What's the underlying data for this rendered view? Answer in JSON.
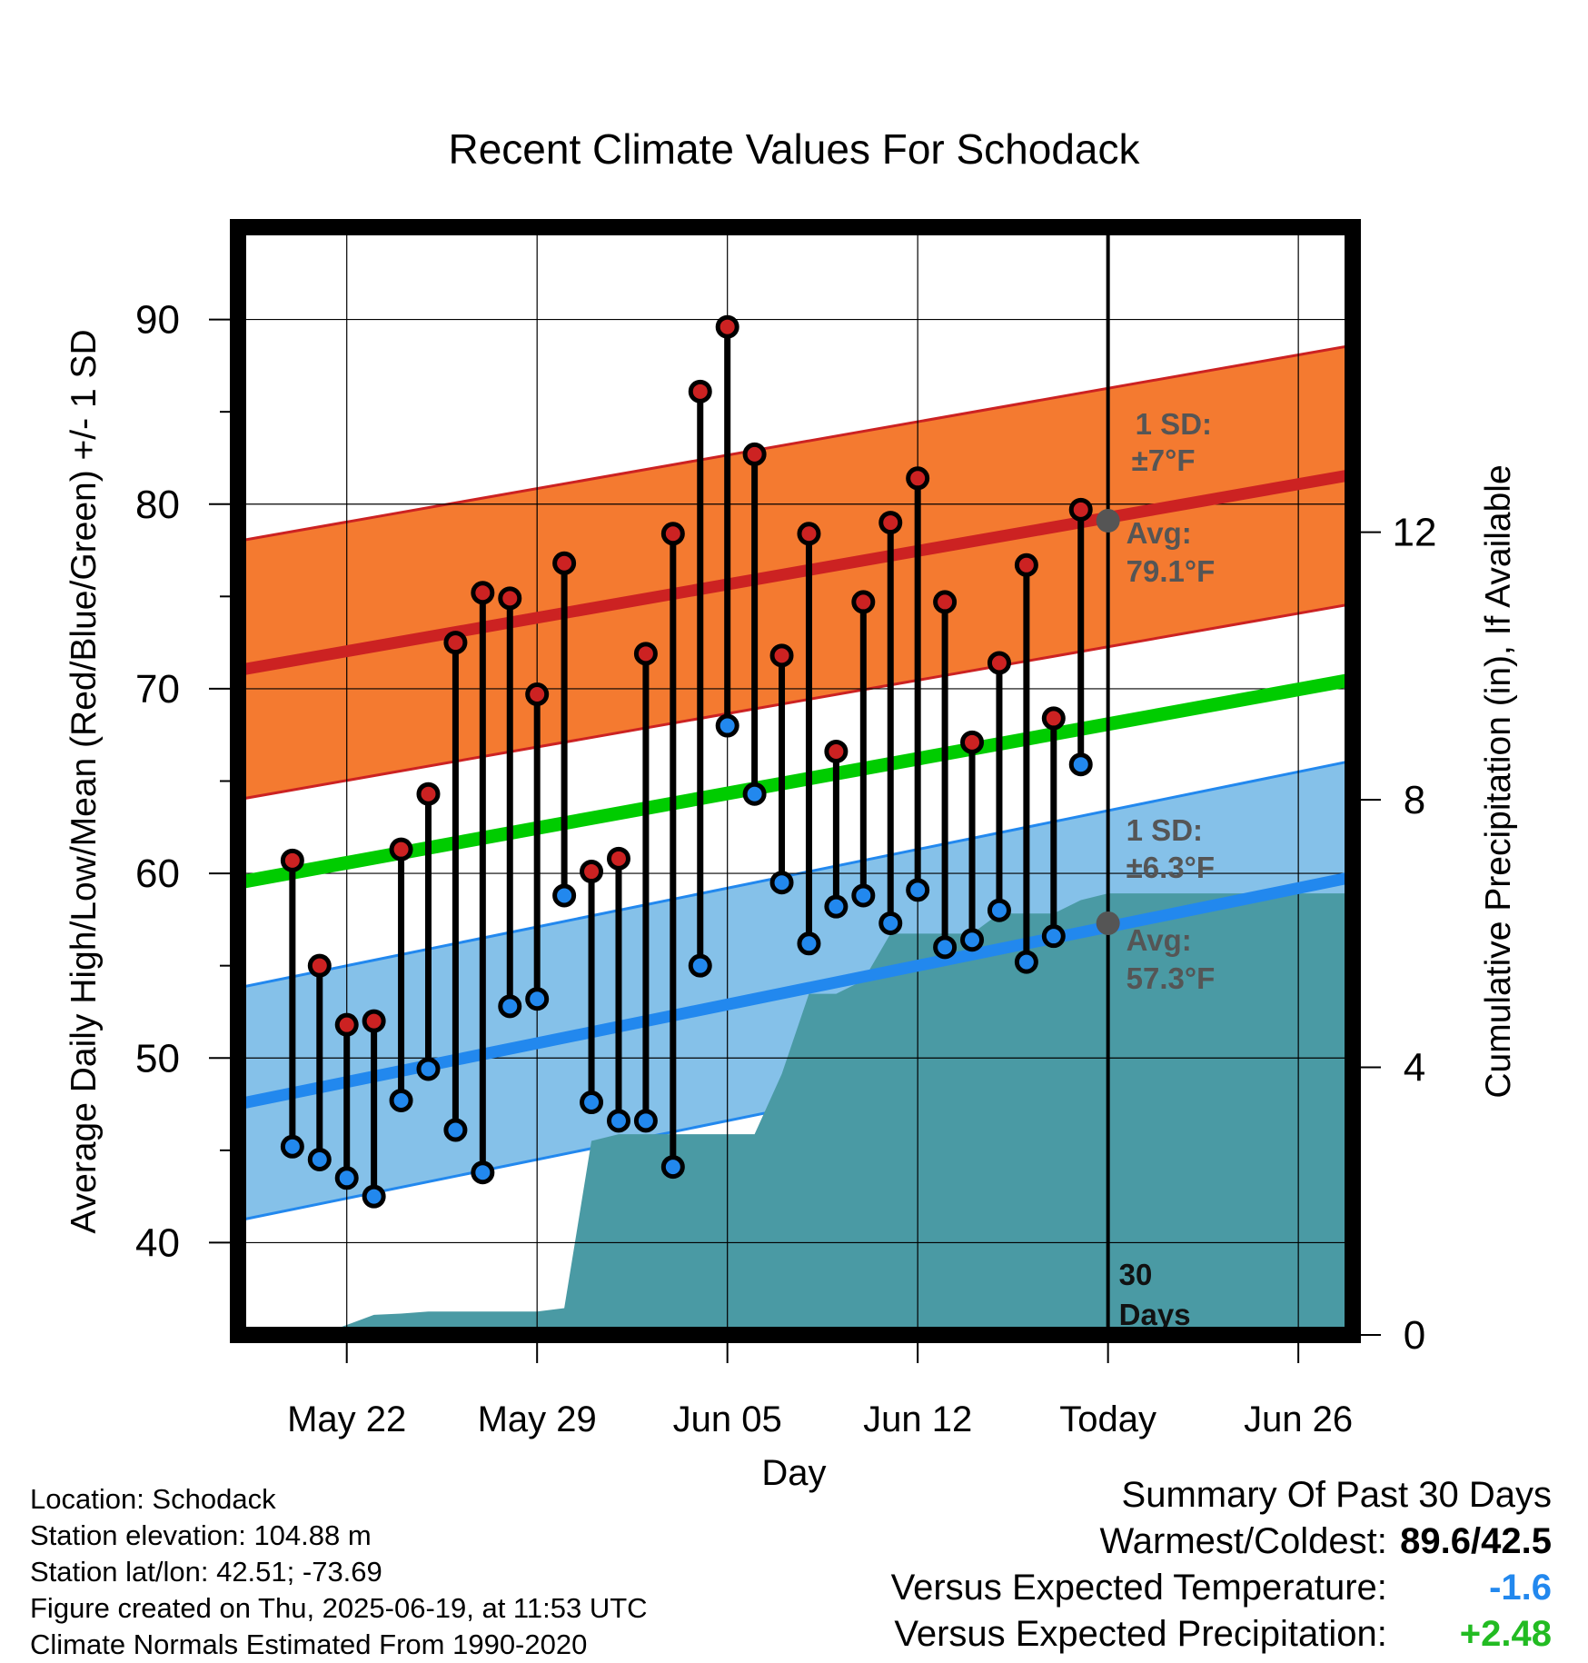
{
  "chart_data": {
    "type": "line",
    "title": "Recent Climate Values For Schodack",
    "xlabel": "Day",
    "ylabel": "Average Daily High/Low/Mean (Red/Blue/Green) +/- 1 SD",
    "y2label": "Cumulative Precipitation (in), If Available",
    "ylim": [
      35,
      95
    ],
    "y_ticks": [
      40,
      50,
      60,
      70,
      80,
      90
    ],
    "y2lim": [
      0,
      16.56
    ],
    "y2_ticks": [
      0,
      4,
      8,
      12
    ],
    "x_ticks": [
      "May 22",
      "May 29",
      "Jun 05",
      "Jun 12",
      "Today",
      "Jun 26"
    ],
    "x_range_days": [
      "May 18",
      "Jun 28"
    ],
    "grid": true,
    "days": [
      "May 20",
      "May 21",
      "May 22",
      "May 23",
      "May 24",
      "May 25",
      "May 26",
      "May 27",
      "May 28",
      "May 29",
      "May 30",
      "May 31",
      "Jun 01",
      "Jun 02",
      "Jun 03",
      "Jun 04",
      "Jun 05",
      "Jun 06",
      "Jun 07",
      "Jun 08",
      "Jun 09",
      "Jun 10",
      "Jun 11",
      "Jun 12",
      "Jun 13",
      "Jun 14",
      "Jun 15",
      "Jun 16",
      "Jun 17",
      "Jun 18"
    ],
    "series": [
      {
        "name": "High",
        "color": "#cc2222",
        "values": [
          60.7,
          55.0,
          51.8,
          52.0,
          61.3,
          64.3,
          72.5,
          75.2,
          74.9,
          69.7,
          76.8,
          60.1,
          60.8,
          71.9,
          78.4,
          86.1,
          89.6,
          82.7,
          71.8,
          78.4,
          66.6,
          74.7,
          79.0,
          81.4,
          74.7,
          67.1,
          71.4,
          76.7,
          68.4,
          79.7
        ]
      },
      {
        "name": "Low",
        "color": "#2288ee",
        "values": [
          45.2,
          44.5,
          43.5,
          42.5,
          47.7,
          49.4,
          46.1,
          43.8,
          52.8,
          53.2,
          58.8,
          47.6,
          46.6,
          46.6,
          44.1,
          55.0,
          68.0,
          64.3,
          59.5,
          56.2,
          58.2,
          58.8,
          57.3,
          59.1,
          56.0,
          56.4,
          58.0,
          55.2,
          56.6,
          65.9
        ]
      }
    ],
    "normals": {
      "high_avg": {
        "start": 71.0,
        "end": 81.6,
        "today": 79.1
      },
      "high_sd": 7,
      "low_avg": {
        "start": 47.5,
        "end": 59.8,
        "today": 57.3
      },
      "low_sd": 6.3,
      "mean_avg": {
        "start": 59.5,
        "end": 70.5
      }
    },
    "precip_cumulative": {
      "days": [
        "May 21",
        "May 22",
        "May 23",
        "May 24",
        "May 25",
        "May 26",
        "May 27",
        "May 28",
        "May 29",
        "May 30",
        "May 31",
        "Jun 01",
        "Jun 02",
        "Jun 03",
        "Jun 04",
        "Jun 05",
        "Jun 06",
        "Jun 07",
        "Jun 08",
        "Jun 09",
        "Jun 10",
        "Jun 11",
        "Jun 12",
        "Jun 13",
        "Jun 14",
        "Jun 15",
        "Jun 16",
        "Jun 17",
        "Jun 18",
        "Jun 19",
        "Jun 28"
      ],
      "values": [
        0,
        0.15,
        0.3,
        0.32,
        0.35,
        0.35,
        0.35,
        0.35,
        0.35,
        0.4,
        2.9,
        3.0,
        3.0,
        3.0,
        3.0,
        3.0,
        3.0,
        3.9,
        5.1,
        5.1,
        5.3,
        6.0,
        6.0,
        6.0,
        6.0,
        6.3,
        6.3,
        6.3,
        6.5,
        6.6,
        6.6
      ]
    },
    "annotations": {
      "high_sd_label": "1 SD:",
      "high_sd_value": "±7°F",
      "high_avg_label": "Avg:",
      "high_avg_value": "79.1°F",
      "low_sd_label": "1 SD:",
      "low_sd_value": "±6.3°F",
      "low_avg_label": "Avg:",
      "low_avg_value": "57.3°F",
      "period_line1": "30",
      "period_line2": "Days"
    },
    "colors": {
      "high_band": "#f47a30",
      "high_line": "#cc2222",
      "low_band": "#85c1e9",
      "low_line": "#2288ee",
      "mean_line": "#00cc00",
      "precip": "#4a9aa4",
      "annotation": "#555555"
    }
  },
  "footer": {
    "location": "Location: Schodack",
    "elevation": "Station elevation: 104.88 m",
    "latlon": "Station lat/lon: 42.51; -73.69",
    "created": "Figure created on Thu, 2025-06-19, at 11:53 UTC",
    "normals": "Climate Normals Estimated From 1990-2020"
  },
  "summary": {
    "title": "Summary Of Past 30 Days",
    "warm_cold_label": "Warmest/Coldest:",
    "warm_cold_value": "89.6/42.5",
    "temp_label": "Versus Expected Temperature:",
    "temp_value": "-1.6",
    "temp_color": "#2288ee",
    "precip_label": "Versus Expected Precipitation:",
    "precip_value": "+2.48",
    "precip_color": "#22bb22"
  }
}
